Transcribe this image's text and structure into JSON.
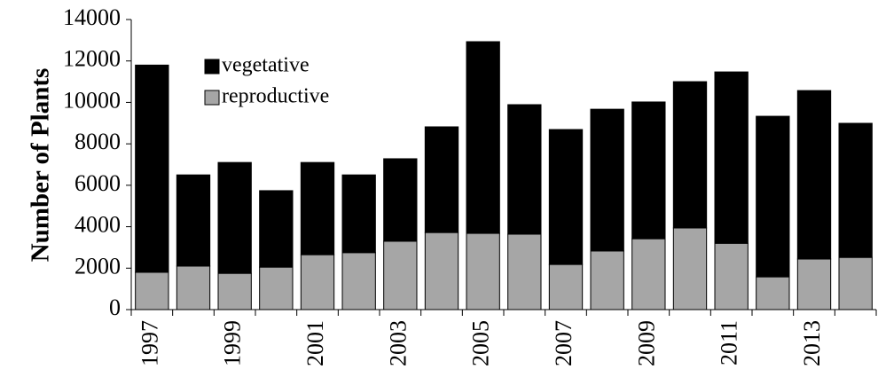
{
  "chart_data": {
    "type": "stacked-bar",
    "y_label": "Number of Plants",
    "categories": [
      "1997",
      null,
      "1999",
      null,
      "2001",
      null,
      "2003",
      null,
      "2005",
      null,
      "2007",
      null,
      "2009",
      null,
      "2011",
      null,
      "2013",
      null
    ],
    "series": [
      {
        "name": "vegetative",
        "color": "#000000",
        "values": [
          10000,
          4400,
          5350,
          3690,
          4450,
          3750,
          3980,
          5100,
          9250,
          6250,
          6510,
          6840,
          6600,
          7060,
          8270,
          7750,
          8130,
          6470
        ]
      },
      {
        "name": "reproductive",
        "color": "#a6a6a6",
        "values": [
          1800,
          2100,
          1750,
          2050,
          2650,
          2750,
          3300,
          3720,
          3680,
          3640,
          2180,
          2830,
          3420,
          3940,
          3200,
          1580,
          2440,
          2520
        ]
      }
    ],
    "ylim": [
      0,
      14000
    ],
    "yticks": [
      0,
      2000,
      4000,
      6000,
      8000,
      10000,
      12000,
      14000
    ],
    "grid": false
  }
}
